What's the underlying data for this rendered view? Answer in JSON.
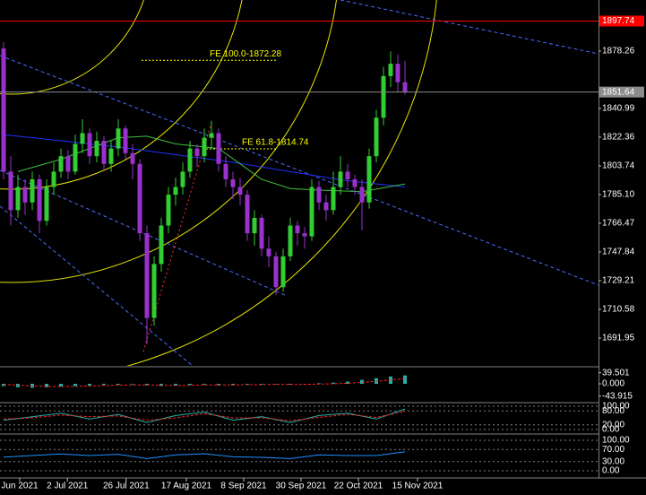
{
  "chart_data": {
    "type": "candlestick",
    "xlim": [
      -0.5,
      83
    ],
    "ylim": [
      1673.9,
      1911.4
    ],
    "bull_color": "#32cd32",
    "bear_color": "#9932cc",
    "candles": [
      [
        1880,
        1884,
        1795,
        1800
      ],
      [
        1800,
        1810,
        1765,
        1775
      ],
      [
        1775,
        1798,
        1770,
        1790
      ],
      [
        1790,
        1795,
        1772,
        1780
      ],
      [
        1780,
        1800,
        1775,
        1795
      ],
      [
        1795,
        1798,
        1760,
        1768
      ],
      [
        1768,
        1795,
        1765,
        1790
      ],
      [
        1790,
        1806,
        1785,
        1800
      ],
      [
        1800,
        1815,
        1796,
        1810
      ],
      [
        1810,
        1814,
        1795,
        1800
      ],
      [
        1800,
        1824,
        1798,
        1818
      ],
      [
        1818,
        1834,
        1812,
        1825
      ],
      [
        1825,
        1828,
        1805,
        1810
      ],
      [
        1810,
        1826,
        1806,
        1820
      ],
      [
        1820,
        1823,
        1800,
        1805
      ],
      [
        1805,
        1820,
        1800,
        1815
      ],
      [
        1815,
        1834,
        1810,
        1828
      ],
      [
        1828,
        1830,
        1808,
        1812
      ],
      [
        1812,
        1818,
        1795,
        1805
      ],
      [
        1805,
        1808,
        1755,
        1760
      ],
      [
        1760,
        1765,
        1688,
        1705
      ],
      [
        1705,
        1745,
        1700,
        1740
      ],
      [
        1740,
        1770,
        1735,
        1765
      ],
      [
        1765,
        1790,
        1760,
        1785
      ],
      [
        1785,
        1796,
        1778,
        1790
      ],
      [
        1790,
        1806,
        1785,
        1800
      ],
      [
        1800,
        1820,
        1796,
        1815
      ],
      [
        1815,
        1818,
        1803,
        1810
      ],
      [
        1810,
        1828,
        1806,
        1822
      ],
      [
        1822,
        1833,
        1815,
        1825
      ],
      [
        1825,
        1828,
        1800,
        1805
      ],
      [
        1805,
        1810,
        1790,
        1795
      ],
      [
        1795,
        1800,
        1782,
        1790
      ],
      [
        1790,
        1796,
        1778,
        1785
      ],
      [
        1785,
        1788,
        1755,
        1760
      ],
      [
        1760,
        1775,
        1752,
        1770
      ],
      [
        1770,
        1772,
        1745,
        1750
      ],
      [
        1750,
        1758,
        1738,
        1745
      ],
      [
        1745,
        1748,
        1720,
        1725
      ],
      [
        1725,
        1750,
        1722,
        1745
      ],
      [
        1745,
        1770,
        1742,
        1765
      ],
      [
        1765,
        1768,
        1752,
        1760
      ],
      [
        1760,
        1764,
        1750,
        1758
      ],
      [
        1758,
        1795,
        1755,
        1790
      ],
      [
        1790,
        1794,
        1775,
        1780
      ],
      [
        1780,
        1785,
        1768,
        1775
      ],
      [
        1775,
        1800,
        1772,
        1790
      ],
      [
        1790,
        1810,
        1785,
        1800
      ],
      [
        1800,
        1805,
        1790,
        1795
      ],
      [
        1795,
        1798,
        1785,
        1790
      ],
      [
        1790,
        1795,
        1762,
        1780
      ],
      [
        1780,
        1815,
        1776,
        1810
      ],
      [
        1810,
        1840,
        1806,
        1835
      ],
      [
        1835,
        1868,
        1830,
        1862
      ],
      [
        1862,
        1878,
        1855,
        1870
      ],
      [
        1870,
        1876,
        1852,
        1858
      ],
      [
        1858,
        1872,
        1850,
        1852
      ]
    ],
    "yticks": [
      {
        "value": 1691.95,
        "label": "1691.95"
      },
      {
        "value": 1710.58,
        "label": "1710.58"
      },
      {
        "value": 1729.21,
        "label": "1729.21"
      },
      {
        "value": 1747.84,
        "label": "1747.84"
      },
      {
        "value": 1766.47,
        "label": "1766.47"
      },
      {
        "value": 1785.1,
        "label": "1785.10"
      },
      {
        "value": 1803.74,
        "label": "1803.74"
      },
      {
        "value": 1822.36,
        "label": "1822.36"
      },
      {
        "value": 1840.99,
        "label": "1840.99"
      },
      {
        "value": 1878.26,
        "label": "1878.26"
      }
    ],
    "xticks": [
      {
        "value": 2.25,
        "label": "Jun 2021"
      },
      {
        "value": 8.9,
        "label": "2 Jul 2021"
      },
      {
        "value": 17.1,
        "label": "26 Jul 2021"
      },
      {
        "value": 25.5,
        "label": "17 Aug 2021"
      },
      {
        "value": 33.5,
        "label": "8 Sep 2021"
      },
      {
        "value": 41.5,
        "label": "30 Sep 2021"
      },
      {
        "value": 49.5,
        "label": "22 Oct 2021"
      },
      {
        "value": 57.75,
        "label": "15 Nov 2021"
      }
    ],
    "price_lines": [
      {
        "value": 1897.74,
        "color": "#ff0000",
        "label_bg": "#ff0000",
        "label_color": "#ffffff"
      },
      {
        "value": 1851.64,
        "color": "#8c8c8c",
        "label_bg": "#8c8c8c",
        "label_color": "#ffffff"
      }
    ],
    "fib_levels": [
      {
        "label": "FE 100.0-1872.28",
        "value": 1872.28,
        "x": [
          19.25,
          38.25
        ],
        "color": "#ffff00"
      },
      {
        "label": "FE 61.8-1814.74",
        "value": 1814.74,
        "x": [
          28.25,
          38.25
        ],
        "color": "#ffff00"
      }
    ],
    "ma_lines": [
      {
        "color": "#2030ff",
        "x": [
          0,
          8,
          16,
          24,
          32,
          40,
          48,
          56
        ],
        "values": [
          1824,
          1820,
          1816,
          1811,
          1806,
          1800,
          1794,
          1790
        ]
      },
      {
        "color": "#40c040",
        "x": [
          2,
          8,
          16,
          20,
          24,
          30,
          36,
          40,
          44,
          50,
          56
        ],
        "values": [
          1800,
          1808,
          1822,
          1823,
          1818,
          1815,
          1795,
          1789,
          1788,
          1787,
          1792
        ]
      }
    ],
    "indicators": [
      {
        "type": "oscillator",
        "ylim": [
          -64,
          57.6
        ],
        "yticks": [
          39.501,
          {
            "value": 0,
            "label": "0.000"
          },
          -43.915
        ],
        "grid": false,
        "x": [
          0,
          2,
          4,
          6,
          8,
          10,
          12,
          14,
          16,
          18,
          20,
          22,
          24,
          26,
          28,
          30,
          32,
          34,
          36,
          38,
          40,
          42,
          44,
          46,
          48,
          50,
          52,
          54,
          56
        ],
        "series": [
          {
            "kind": "bar",
            "color": "#20b2aa",
            "values": [
              -8,
              -12,
              -14,
              -12,
              -10,
              -8,
              -6,
              -4,
              -3,
              -2,
              -5,
              -8,
              -6,
              -4,
              -3,
              -5,
              -4,
              -3,
              -2,
              -2,
              -3,
              -1,
              2,
              4,
              8,
              14,
              20,
              26,
              30
            ]
          },
          {
            "kind": "line",
            "dash": true,
            "color": "#ff2020",
            "values": [
              -2,
              -5,
              -8,
              -9,
              -10,
              -9,
              -8,
              -6,
              -5,
              -4,
              -4,
              -5,
              -6,
              -5,
              -4,
              -4,
              -4,
              -3,
              -3,
              -2,
              -2,
              -2,
              -1,
              0,
              2,
              5,
              9,
              14,
              18
            ]
          }
        ]
      },
      {
        "type": "oscillator",
        "ylim": [
          -15.4,
          111.5
        ],
        "yticks": [
          {
            "value": 100,
            "label": "100.00"
          },
          {
            "value": 80,
            "label": "80.00"
          },
          {
            "value": 20,
            "label": "20.00"
          },
          {
            "value": 0,
            "label": "0.00"
          }
        ],
        "grid": true,
        "x": [
          0,
          4,
          8,
          12,
          16,
          20,
          24,
          28,
          32,
          36,
          40,
          44,
          48,
          52,
          56
        ],
        "series": [
          {
            "kind": "line",
            "dash": false,
            "color": "#20b2aa",
            "values": [
              40,
              55,
              70,
              45,
              65,
              30,
              60,
              75,
              40,
              55,
              30,
              60,
              70,
              45,
              88
            ]
          },
          {
            "kind": "line",
            "dash": true,
            "color": "#ff2020",
            "values": [
              45,
              50,
              62,
              55,
              58,
              40,
              50,
              68,
              50,
              50,
              38,
              52,
              65,
              52,
              78
            ]
          }
        ]
      },
      {
        "type": "oscillator",
        "ylim": [
          -20.6,
          117.6
        ],
        "yticks": [
          {
            "value": 100,
            "label": "100.00"
          },
          {
            "value": 70,
            "label": "70.00"
          },
          {
            "value": 30,
            "label": "30.00"
          },
          {
            "value": 0,
            "label": "0.00"
          }
        ],
        "grid": true,
        "x": [
          0,
          4,
          8,
          12,
          16,
          20,
          24,
          28,
          32,
          36,
          40,
          44,
          48,
          52,
          56
        ],
        "series": [
          {
            "kind": "line",
            "dash": false,
            "color": "#1e90ff",
            "values": [
              45,
              50,
              55,
              50,
              54,
              40,
              52,
              56,
              46,
              44,
              40,
              52,
              50,
              50,
              62
            ]
          }
        ]
      }
    ]
  }
}
